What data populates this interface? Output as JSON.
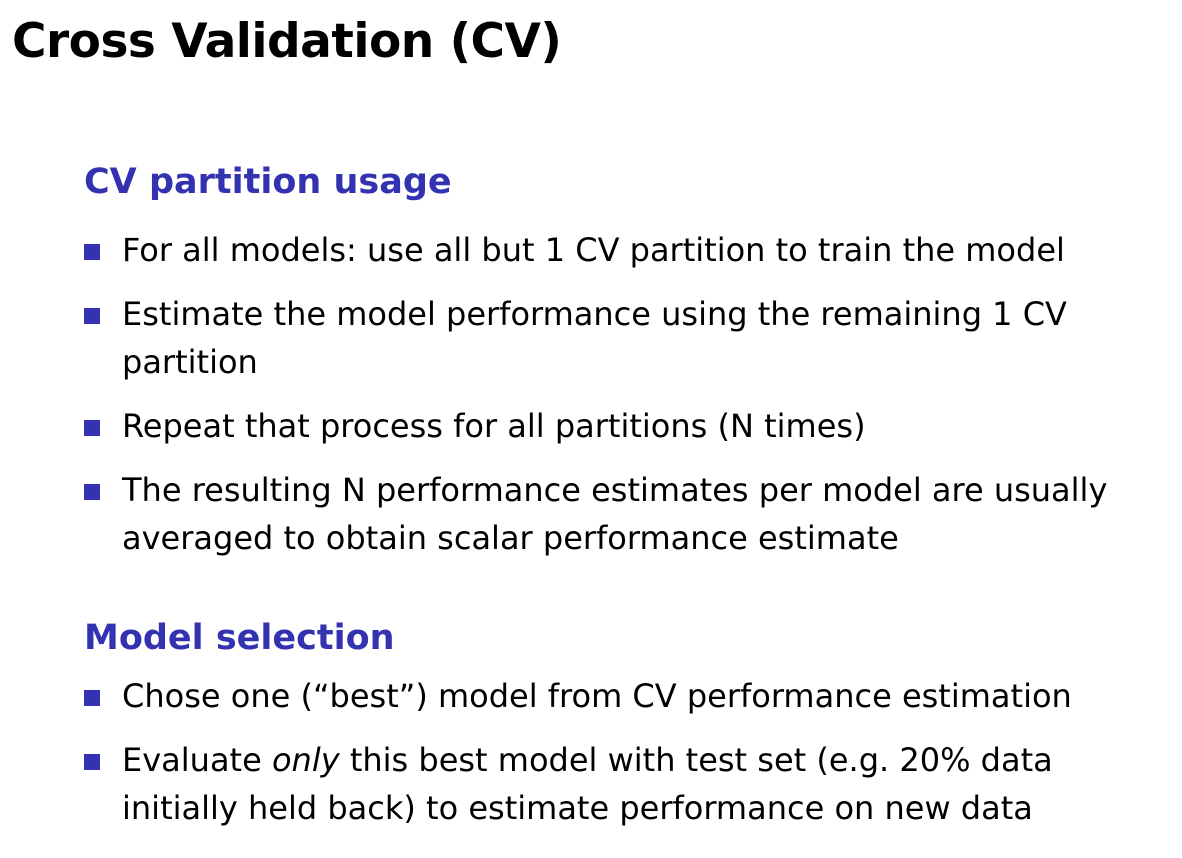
{
  "slide": {
    "title": "Cross Validation (CV)"
  },
  "sections": [
    {
      "heading": "CV partition usage",
      "bullets": [
        {
          "line1": "For all models: use all but 1 CV partition to train the model"
        },
        {
          "line1": "Estimate the model performance using the remaining 1 CV",
          "line2": "partition"
        },
        {
          "line1": "Repeat that process for all partitions (N times)"
        },
        {
          "line1": "The resulting N performance estimates per model are usually",
          "line2": "averaged to obtain scalar performance estimate"
        }
      ]
    },
    {
      "heading": "Model selection",
      "bullets": [
        {
          "line1": "Chose one (“best”) model from CV performance estimation"
        },
        {
          "line1_pre": "Evaluate ",
          "line1_em": "only",
          "line1_post": " this best model with test set (e.g. 20% data",
          "line2": "initially held back) to estimate performance on new data"
        }
      ]
    }
  ],
  "colors": {
    "accent": "#3333b2",
    "text": "#000000",
    "background": "#ffffff"
  },
  "icons": {
    "bullet": "square-bullet-icon"
  }
}
